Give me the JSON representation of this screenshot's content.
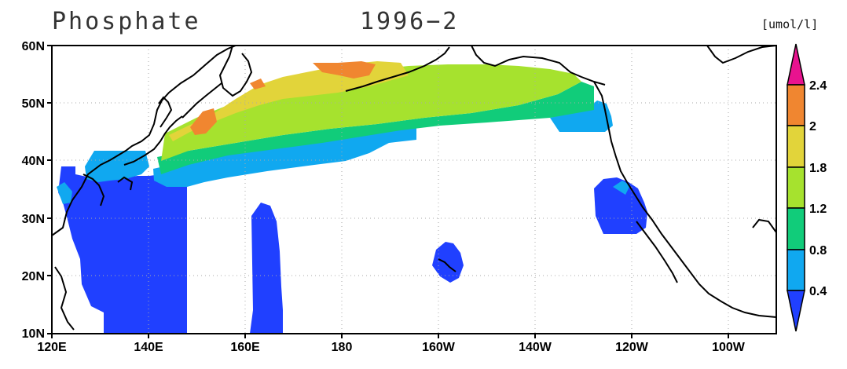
{
  "title": "Phosphate",
  "period": "1996-2",
  "units": "[umol/l]",
  "lat_ticks": [
    "60N",
    "50N",
    "40N",
    "30N",
    "20N",
    "10N"
  ],
  "lon_ticks": [
    "120E",
    "140E",
    "160E",
    "180",
    "160W",
    "140W",
    "120W",
    "100W"
  ],
  "colorbar": {
    "labels": [
      "2.4",
      "2",
      "1.8",
      "1.2",
      "0.8",
      "0.4"
    ],
    "colors": [
      "#e8138f",
      "#f08630",
      "#e2d43a",
      "#a6e22e",
      "#11cc7a",
      "#10a8f0",
      "#2040ff"
    ]
  },
  "colors": {
    "ocean_bg": "#ffffff",
    "coast": "#000000",
    "grid": "#aaaaaa"
  }
}
